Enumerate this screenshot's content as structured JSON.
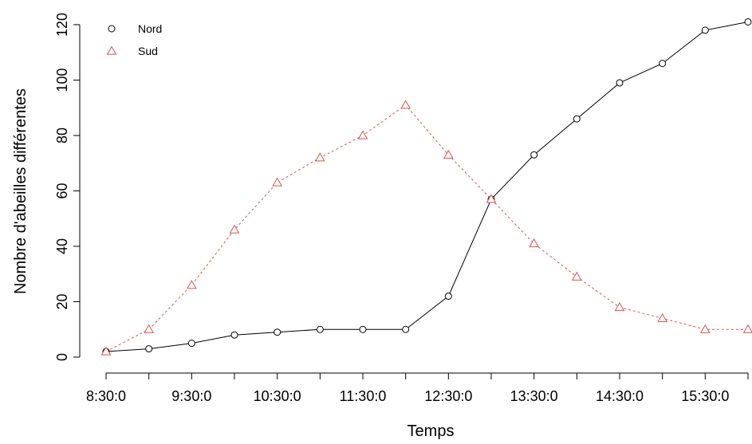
{
  "chart_data": {
    "type": "line",
    "title": "",
    "xlabel": "Temps",
    "ylabel": "Nombre d'abeilles différentes",
    "x": [
      "8:30:0",
      "9:0:0",
      "9:30:0",
      "10:0:0",
      "10:30:0",
      "11:0:0",
      "11:30:0",
      "12:0:0",
      "12:30:0",
      "13:0:0",
      "13:30:0",
      "14:0:0",
      "14:30:0",
      "15:0:0",
      "15:30:0",
      "16:0:0"
    ],
    "x_tick_labels": [
      "8:30:0",
      "9:30:0",
      "10:30:0",
      "11:30:0",
      "12:30:0",
      "13:30:0",
      "14:30:0",
      "15:30:0"
    ],
    "y_ticks": [
      0,
      20,
      40,
      60,
      80,
      100,
      120
    ],
    "ylim": [
      0,
      122
    ],
    "grid": false,
    "legend_position": "top-left",
    "series": [
      {
        "name": "Nord",
        "color": "#000000",
        "marker": "circle",
        "line": "solid",
        "values": [
          2,
          3,
          5,
          8,
          9,
          10,
          10,
          10,
          22,
          57,
          73,
          86,
          99,
          106,
          118,
          121
        ]
      },
      {
        "name": "Sud",
        "color": "#d9534f",
        "marker": "triangle",
        "line": "dotted",
        "values": [
          2,
          10,
          26,
          46,
          63,
          72,
          80,
          91,
          73,
          57,
          41,
          29,
          18,
          14,
          10,
          10
        ]
      }
    ]
  }
}
